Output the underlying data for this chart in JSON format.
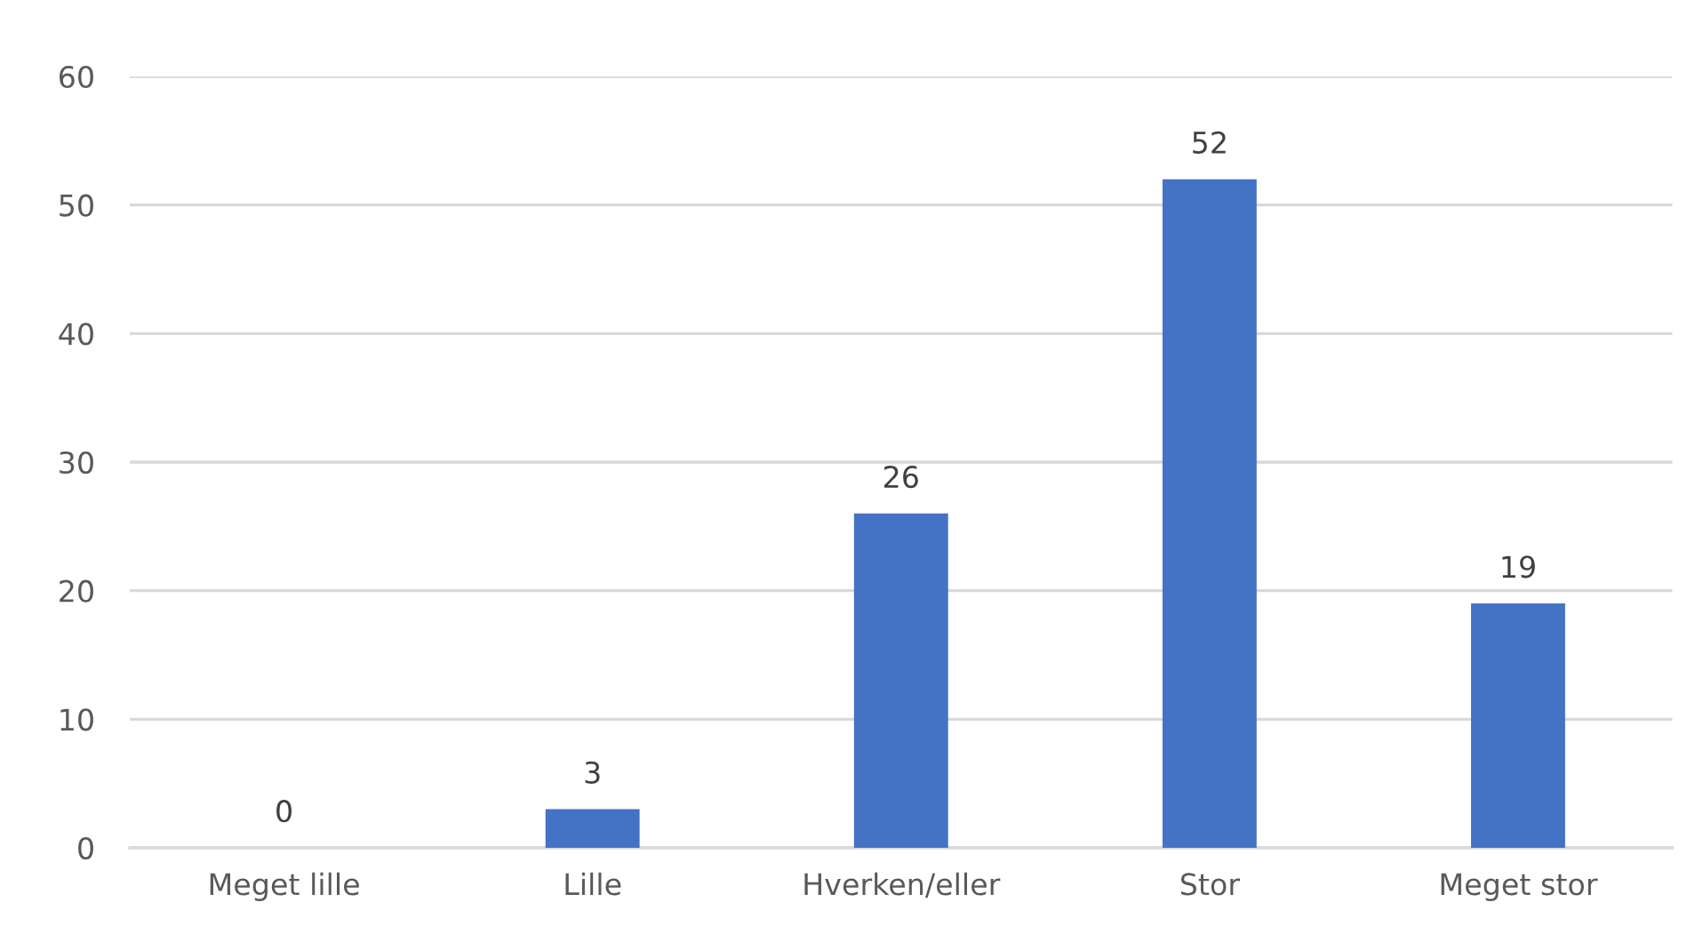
{
  "chart_data": {
    "type": "bar",
    "categories": [
      "Meget lille",
      "Lille",
      "Hverken/eller",
      "Stor",
      "Meget stor"
    ],
    "values": [
      0,
      3,
      26,
      52,
      19
    ],
    "color": "#4472c4",
    "ylim": [
      0,
      60
    ],
    "yticks": [
      0,
      10,
      20,
      30,
      40,
      50,
      60
    ],
    "grid": "y",
    "data_labels": true
  }
}
